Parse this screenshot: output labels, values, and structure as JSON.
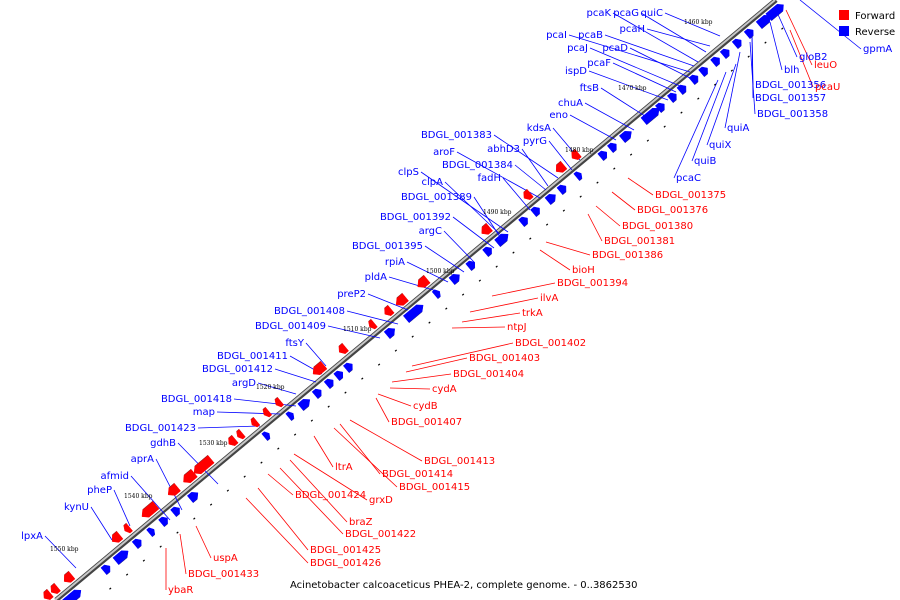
{
  "caption": "Acinetobacter calcoaceticus PHEA-2, complete genome. - 0..3862530",
  "legend": [
    {
      "label": "Forward",
      "color": "#ff0000"
    },
    {
      "label": "Reverse",
      "color": "#0000ff"
    }
  ],
  "ticks": [
    "1460 kbp",
    "1470 kbp",
    "1480 kbp",
    "1490 kbp",
    "1500 kbp",
    "1510 kbp",
    "1520 kbp",
    "1530 kbp",
    "1540 kbp",
    "1550 kbp"
  ],
  "reverse_labels": [
    "pcaK",
    "pcaG",
    "quiC",
    "pcaI",
    "pcaB",
    "pcaH",
    "pcaJ",
    "pcaD",
    "ispD",
    "pcaF",
    "ftsB",
    "chuA",
    "eno",
    "kdsA",
    "BDGL_001383",
    "abhD3",
    "pyrG",
    "aroF",
    "BDGL_001384",
    "fadH",
    "clpS",
    "clpA",
    "BDGL_001389",
    "BDGL_001392",
    "argC",
    "BDGL_001395",
    "rpiA",
    "pldA",
    "preP2",
    "BDGL_001408",
    "BDGL_001409",
    "ftsY",
    "BDGL_001411",
    "BDGL_001412",
    "argD",
    "BDGL_001418",
    "map",
    "BDGL_001423",
    "gdhB",
    "aprA",
    "afmid",
    "pheP",
    "kynU",
    "lpxA"
  ],
  "reverse_labels_right": [
    "gpmA",
    "gloB2",
    "blh",
    "BDGL_001356",
    "BDGL_001357",
    "BDGL_001358",
    "quiA",
    "quiX",
    "quiB",
    "pcaC"
  ],
  "forward_labels": [
    "leuO",
    "pcaU",
    "BDGL_001375",
    "BDGL_001376",
    "BDGL_001380",
    "BDGL_001381",
    "BDGL_001386",
    "bioH",
    "BDGL_001394",
    "ilvA",
    "trkA",
    "ntpJ",
    "BDGL_001402",
    "BDGL_001403",
    "BDGL_001404",
    "cydA",
    "cydB",
    "BDGL_001407",
    "BDGL_001413",
    "BDGL_001414",
    "BDGL_001415",
    "ltrA",
    "BDGL_001424",
    "grxD",
    "braZ",
    "BDGL_001422",
    "BDGL_001425",
    "BDGL_001426",
    "uspA",
    "BDGL_001433",
    "ybaR"
  ]
}
